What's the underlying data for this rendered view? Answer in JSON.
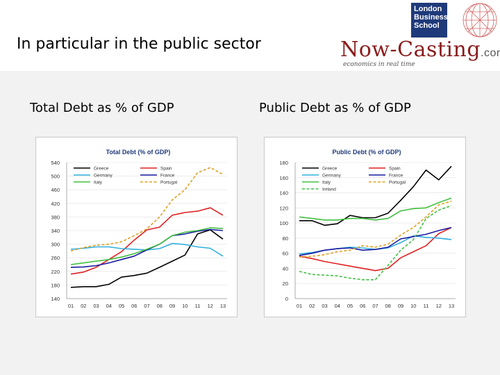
{
  "slide": {
    "title": "In particular in the public sector",
    "left_caption": "Total Debt as % of GDP",
    "right_caption": "Public Debt as % of GDP"
  },
  "logos": {
    "lbs_line1": "London",
    "lbs_line2": "Business",
    "lbs_line3": "School",
    "nowcasting": "Now-Casting",
    "nowcasting_suffix": ".com",
    "tagline": "economics in real time",
    "lbs_color": "#1f3a7a",
    "nowcasting_color": "#8a1c1c"
  },
  "chart_data": [
    {
      "type": "line",
      "title": "Total Debt (% of GDP)",
      "categories": [
        "01",
        "02",
        "03",
        "04",
        "05",
        "06",
        "07",
        "08",
        "09",
        "10",
        "11",
        "12",
        "13"
      ],
      "ylim": [
        140,
        540
      ],
      "yticks": [
        140,
        180,
        220,
        260,
        300,
        340,
        380,
        420,
        460,
        500,
        540
      ],
      "legend": "top",
      "series": [
        {
          "name": "Greece",
          "color": "#000000",
          "dashed": false,
          "values": [
            173,
            175,
            175,
            182,
            203,
            208,
            215,
            232,
            250,
            268,
            330,
            342,
            315
          ]
        },
        {
          "name": "Spain",
          "color": "#e02020",
          "dashed": false,
          "values": [
            212,
            218,
            232,
            255,
            278,
            312,
            342,
            350,
            385,
            393,
            397,
            407,
            385
          ]
        },
        {
          "name": "Germany",
          "color": "#30b0e0",
          "dashed": false,
          "values": [
            285,
            288,
            292,
            292,
            287,
            285,
            283,
            287,
            302,
            299,
            292,
            288,
            265
          ]
        },
        {
          "name": "France",
          "color": "#1a1aa0",
          "dashed": false,
          "values": [
            232,
            233,
            237,
            245,
            255,
            265,
            283,
            300,
            325,
            330,
            338,
            343,
            340
          ]
        },
        {
          "name": "Italy",
          "color": "#40c040",
          "dashed": false,
          "values": [
            240,
            245,
            250,
            255,
            262,
            272,
            285,
            300,
            325,
            335,
            340,
            348,
            346
          ]
        },
        {
          "name": "Portugal",
          "color": "#e0a020",
          "dashed": true,
          "values": [
            280,
            290,
            297,
            300,
            307,
            325,
            345,
            380,
            430,
            460,
            510,
            525,
            505
          ]
        }
      ]
    },
    {
      "type": "line",
      "title": "Public Debt (% of GDP)",
      "categories": [
        "01",
        "02",
        "03",
        "04",
        "05",
        "06",
        "07",
        "08",
        "09",
        "10",
        "11",
        "12",
        "13"
      ],
      "ylim": [
        0,
        180
      ],
      "yticks": [
        0,
        20,
        40,
        60,
        80,
        100,
        120,
        140,
        160,
        180
      ],
      "legend": "top",
      "series": [
        {
          "name": "Greece",
          "color": "#000000",
          "dashed": false,
          "values": [
            103,
            103,
            97,
            99,
            110,
            107,
            107,
            113,
            130,
            148,
            170,
            157,
            175
          ]
        },
        {
          "name": "Spain",
          "color": "#e02020",
          "dashed": false,
          "values": [
            56,
            53,
            49,
            46,
            43,
            40,
            37,
            40,
            54,
            62,
            70,
            86,
            94
          ]
        },
        {
          "name": "Germany",
          "color": "#30b0e0",
          "dashed": false,
          "values": [
            59,
            61,
            64,
            66,
            68,
            67,
            65,
            67,
            74,
            83,
            81,
            80,
            78
          ]
        },
        {
          "name": "France",
          "color": "#1a1aa0",
          "dashed": false,
          "values": [
            57,
            60,
            64,
            66,
            67,
            64,
            65,
            68,
            79,
            82,
            85,
            90,
            94
          ]
        },
        {
          "name": "Italy",
          "color": "#40c040",
          "dashed": false,
          "values": [
            108,
            106,
            104,
            104,
            106,
            106,
            104,
            106,
            116,
            119,
            120,
            127,
            133
          ]
        },
        {
          "name": "Portugal",
          "color": "#e0a020",
          "dashed": true,
          "values": [
            55,
            56,
            58,
            62,
            64,
            70,
            68,
            72,
            84,
            94,
            108,
            124,
            129
          ]
        },
        {
          "name": "Ireland",
          "color": "#40c040",
          "dashed": true,
          "values": [
            36,
            32,
            31,
            30,
            27,
            25,
            25,
            44,
            64,
            78,
            106,
            117,
            123
          ]
        }
      ]
    }
  ]
}
